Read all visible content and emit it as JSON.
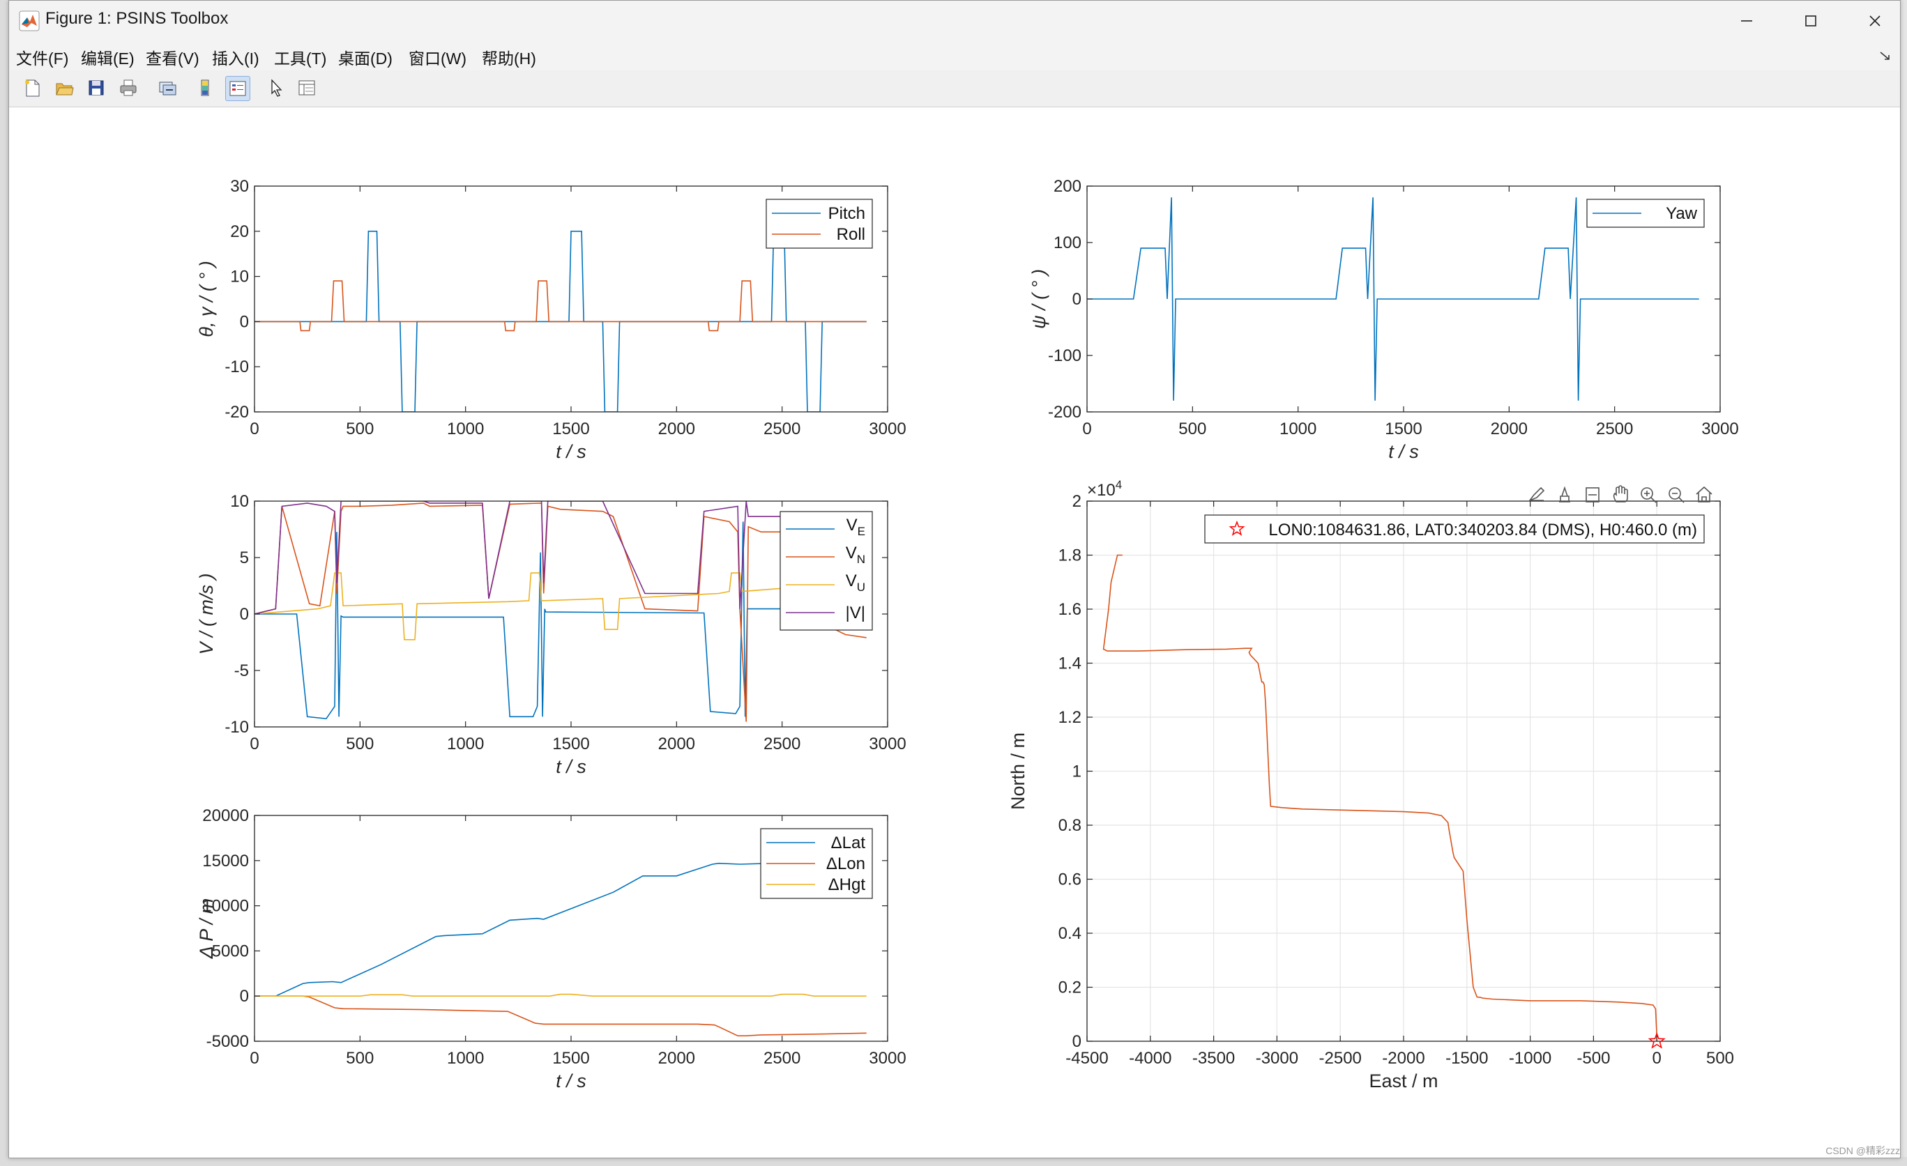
{
  "window": {
    "title": "Figure 1: PSINS Toolbox"
  },
  "menu": [
    "文件(F)",
    "编辑(E)",
    "查看(V)",
    "插入(I)",
    "工具(T)",
    "桌面(D)",
    "窗口(W)",
    "帮助(H)"
  ],
  "toolbar_icons": [
    "new-file-icon",
    "open-folder-icon",
    "save-icon",
    "print-icon",
    "link-figure-icon",
    "colorbar-icon",
    "legend-icon",
    "pointer-icon",
    "property-inspector-icon"
  ],
  "axes_toolbar_icons": [
    "brush-icon",
    "data-tip-icon",
    "restore-view-icon",
    "pan-icon",
    "zoom-in-icon",
    "zoom-out-icon",
    "home-icon"
  ],
  "watermark": "CSDN @精彩zzz",
  "colors": {
    "blue": "#0072BD",
    "orange": "#D95319",
    "yellow": "#EDB120",
    "purple": "#7E2F8E",
    "red": "#FF0000"
  },
  "chart_data": [
    {
      "id": "attitude",
      "type": "line",
      "xlabel": "t / s",
      "ylabel": "θ, γ / ( ° )",
      "xlim": [
        0,
        3000
      ],
      "ylim": [
        -20,
        30
      ],
      "xticks": [
        "0",
        "500",
        "1000",
        "1500",
        "2000",
        "2500",
        "3000"
      ],
      "yticks": [
        "30",
        "20",
        "10",
        "0",
        "-10",
        "-20"
      ],
      "legend": "top-right",
      "series": [
        {
          "name": "Pitch",
          "color": "#0072BD",
          "x": [
            0,
            530,
            540,
            580,
            590,
            690,
            700,
            760,
            770,
            1490,
            1500,
            1550,
            1560,
            1650,
            1660,
            1720,
            1730,
            2450,
            2460,
            2510,
            2520,
            2610,
            2620,
            2680,
            2690,
            2900
          ],
          "y": [
            0,
            0,
            20,
            20,
            0,
            0,
            -20,
            -20,
            0,
            0,
            20,
            20,
            0,
            0,
            -20,
            -20,
            0,
            0,
            20,
            20,
            0,
            0,
            -20,
            -20,
            0,
            0
          ]
        },
        {
          "name": "Roll",
          "color": "#D95319",
          "x": [
            0,
            215,
            220,
            260,
            265,
            365,
            375,
            415,
            425,
            1185,
            1190,
            1230,
            1235,
            1335,
            1345,
            1385,
            1395,
            2150,
            2155,
            2195,
            2200,
            2300,
            2310,
            2350,
            2360,
            2900
          ],
          "y": [
            0,
            0,
            -2,
            -2,
            0,
            0,
            9,
            9,
            0,
            0,
            -2,
            -2,
            0,
            0,
            9,
            9,
            0,
            0,
            -2,
            -2,
            0,
            0,
            9,
            9,
            0,
            0
          ]
        }
      ]
    },
    {
      "id": "yaw",
      "type": "line",
      "xlabel": "t / s",
      "ylabel": "ψ / ( ° )",
      "xlim": [
        0,
        3000
      ],
      "ylim": [
        -200,
        200
      ],
      "xticks": [
        "0",
        "500",
        "1000",
        "1500",
        "2000",
        "2500",
        "3000"
      ],
      "yticks": [
        "200",
        "100",
        "0",
        "-100",
        "-200"
      ],
      "legend": "top-right",
      "series": [
        {
          "name": "Yaw",
          "color": "#0072BD",
          "x": [
            0,
            220,
            255,
            370,
            380,
            400,
            410,
            420,
            1180,
            1210,
            1320,
            1330,
            1355,
            1365,
            1375,
            2140,
            2170,
            2280,
            2290,
            2318,
            2328,
            2338,
            2900
          ],
          "y": [
            0,
            0,
            90,
            90,
            0,
            180,
            -180,
            0,
            0,
            90,
            90,
            0,
            180,
            -180,
            0,
            0,
            90,
            90,
            0,
            180,
            -180,
            0,
            0
          ]
        }
      ]
    },
    {
      "id": "velocity",
      "type": "line",
      "xlabel": "t / s",
      "ylabel": "V / ( m/s )",
      "xlim": [
        0,
        3000
      ],
      "ylim": [
        -11,
        11
      ],
      "xticks": [
        "0",
        "500",
        "1000",
        "1500",
        "2000",
        "2500",
        "3000"
      ],
      "yticks": [
        "10",
        "5",
        "0",
        "-5",
        "-10"
      ],
      "legend": "top-right",
      "series": [
        {
          "name": "V_E",
          "sub": "E",
          "color": "#0072BD",
          "x": [
            0,
            100,
            200,
            250,
            340,
            380,
            390,
            400,
            410,
            420,
            1180,
            1210,
            1320,
            1340,
            1355,
            1365,
            1375,
            1380,
            2130,
            2160,
            2280,
            2300,
            2315,
            2325,
            2335,
            2340,
            2520,
            2900
          ],
          "y": [
            0,
            0,
            0,
            -10,
            -10.2,
            -9,
            8,
            -10,
            -0.2,
            -0.3,
            -0.3,
            -10,
            -10,
            -9,
            6,
            -10,
            0.5,
            0.2,
            0.1,
            -9.5,
            -9.7,
            -9,
            9,
            -10,
            0.5,
            0.5,
            0.5,
            0.5
          ]
        },
        {
          "name": "V_N",
          "sub": "N",
          "color": "#D95319",
          "x": [
            0,
            100,
            130,
            260,
            310,
            380,
            390,
            410,
            420,
            500,
            650,
            800,
            830,
            1080,
            1110,
            1210,
            1360,
            1370,
            1390,
            1450,
            1650,
            1700,
            1850,
            2100,
            2130,
            2250,
            2290,
            2300,
            2330,
            2340,
            2400,
            2600,
            2700,
            2800,
            2900
          ],
          "y": [
            0,
            0.5,
            10.5,
            1,
            0.8,
            10,
            2,
            10,
            10.5,
            10.5,
            10.6,
            10.8,
            10.5,
            10.6,
            1.5,
            10.7,
            10.8,
            2,
            10.5,
            10.2,
            10,
            9.5,
            0.5,
            0.3,
            9.5,
            9,
            8,
            0.5,
            -10.5,
            8.5,
            8,
            8,
            -1,
            -2,
            -2.3
          ]
        },
        {
          "name": "V_U",
          "sub": "U",
          "color": "#EDB120",
          "x": [
            0,
            300,
            360,
            380,
            410,
            420,
            700,
            710,
            760,
            770,
            1200,
            1300,
            1310,
            1350,
            1360,
            1650,
            1660,
            1720,
            1730,
            2200,
            2250,
            2260,
            2300,
            2310,
            2500,
            2610,
            2620,
            2680,
            2690,
            2900
          ],
          "y": [
            0,
            0.5,
            0.8,
            4,
            4,
            0.8,
            1,
            -2.5,
            -2.5,
            1,
            1.2,
            1.3,
            4,
            4,
            1.3,
            1.5,
            -1.5,
            -1.5,
            1.5,
            2,
            2.2,
            4,
            4,
            2.2,
            2.5,
            2.5,
            -1.5,
            -1.5,
            2.5,
            2.5
          ]
        },
        {
          "name": "|V|",
          "sub": "",
          "color": "#7E2F8E",
          "x": [
            0,
            100,
            130,
            250,
            340,
            380,
            390,
            410,
            420,
            800,
            830,
            1080,
            1110,
            1210,
            1360,
            1370,
            1390,
            1650,
            1850,
            2100,
            2130,
            2290,
            2300,
            2330,
            2340,
            2600,
            2900
          ],
          "y": [
            0,
            0.5,
            10.5,
            10.8,
            10.5,
            10,
            3,
            11,
            11,
            11,
            10.8,
            10.8,
            1.5,
            11,
            11,
            3,
            11,
            11,
            2,
            2,
            10,
            10.5,
            0.5,
            11,
            9.5,
            9.5,
            9.5
          ]
        }
      ]
    },
    {
      "id": "position-error",
      "type": "line",
      "xlabel": "t / s",
      "ylabel": "Δ P / m",
      "xlim": [
        0,
        3000
      ],
      "ylim": [
        -5000,
        20000
      ],
      "xticks": [
        "0",
        "500",
        "1000",
        "1500",
        "2000",
        "2500",
        "3000"
      ],
      "yticks": [
        "20000",
        "15000",
        "10000",
        "5000",
        "0",
        "-5000"
      ],
      "legend": "top-right",
      "series": [
        {
          "name": "ΔLat",
          "color": "#0072BD",
          "x": [
            0,
            100,
            230,
            260,
            370,
            410,
            600,
            860,
            900,
            1080,
            1210,
            1340,
            1370,
            1700,
            1840,
            2000,
            2170,
            2200,
            2300,
            2450,
            2600
          ],
          "y": [
            0,
            0,
            1400,
            1500,
            1600,
            1500,
            3500,
            6600,
            6700,
            6900,
            8400,
            8600,
            8500,
            11500,
            13300,
            13300,
            14600,
            14700,
            14600,
            14700,
            15000
          ]
        },
        {
          "name": "ΔLon",
          "color": "#D95319",
          "x": [
            0,
            230,
            260,
            380,
            420,
            800,
            1000,
            1200,
            1330,
            1370,
            1500,
            1800,
            2100,
            2180,
            2200,
            2290,
            2330,
            2400,
            2700,
            2900
          ],
          "y": [
            0,
            0,
            -100,
            -1300,
            -1400,
            -1500,
            -1600,
            -1700,
            -3000,
            -3100,
            -3100,
            -3100,
            -3100,
            -3200,
            -3400,
            -4400,
            -4400,
            -4300,
            -4200,
            -4100
          ]
        },
        {
          "name": "ΔHgt",
          "color": "#EDB120",
          "x": [
            0,
            100,
            500,
            550,
            700,
            750,
            1400,
            1450,
            1500,
            1600,
            2000,
            2450,
            2500,
            2600,
            2650,
            2900
          ],
          "y": [
            0,
            0,
            0,
            150,
            150,
            0,
            0,
            200,
            200,
            0,
            0,
            0,
            200,
            200,
            0,
            0
          ]
        }
      ]
    },
    {
      "id": "trajectory",
      "type": "line",
      "xlabel": "East / m",
      "ylabel": "North / m",
      "xlim": [
        -4500,
        500
      ],
      "ylim": [
        0,
        20000
      ],
      "exponent_label": "×10",
      "exponent_power": "4",
      "xticks": [
        "-4500",
        "-4000",
        "-3500",
        "-3000",
        "-2500",
        "-2000",
        "-1500",
        "-1000",
        "-500",
        "0",
        "500"
      ],
      "yticks": [
        "2",
        "1.8",
        "1.6",
        "1.4",
        "1.2",
        "1",
        "0.8",
        "0.6",
        "0.4",
        "0.2",
        "0"
      ],
      "legend": "top-right",
      "marker_label": "LON0:1084631.86, LAT0:340203.84 (DMS), H0:460.0 (m)",
      "start_marker": {
        "x": 0,
        "y": 0,
        "color": "#FF0000"
      },
      "series": [
        {
          "name": "trajectory",
          "color": "#D95319",
          "x": [
            0,
            0,
            -10,
            -30,
            -120,
            -300,
            -600,
            -1000,
            -1300,
            -1380,
            -1390,
            -1420,
            -1450,
            -1500,
            -1530,
            -1600,
            -1610,
            -1640,
            -1650,
            -1700,
            -1800,
            -2000,
            -2400,
            -2800,
            -2960,
            -3050,
            -3060,
            -3090,
            -3100,
            -3110,
            -3120,
            -3150,
            -3210,
            -3220,
            -3200,
            -3250,
            -3400,
            -3700,
            -4100,
            -4340,
            -4370,
            -4330,
            -4310,
            -4260,
            -4220
          ],
          "y": [
            0,
            200,
            1200,
            1340,
            1400,
            1450,
            1500,
            1500,
            1560,
            1600,
            1620,
            1640,
            2000,
            4500,
            6300,
            6800,
            7000,
            7800,
            8100,
            8350,
            8450,
            8500,
            8550,
            8600,
            8650,
            8700,
            9500,
            12500,
            13200,
            13300,
            13300,
            14000,
            14300,
            14400,
            14550,
            14550,
            14520,
            14500,
            14450,
            14450,
            14520,
            16000,
            17000,
            18000,
            18000
          ]
        }
      ]
    }
  ]
}
